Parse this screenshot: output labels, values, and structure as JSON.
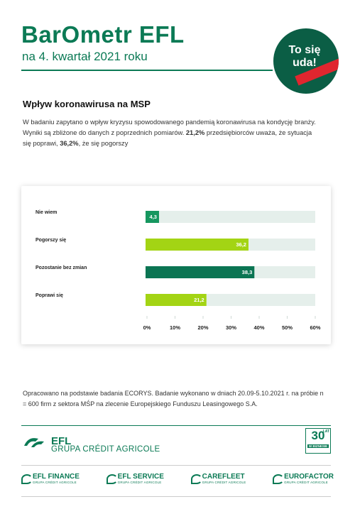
{
  "header": {
    "title": "BarOmetr EFL",
    "subtitle": "na 4. kwartał 2021 roku",
    "badge": "To się uda!"
  },
  "section_title": "Wpływ koronawirusa na MSP",
  "intro": [
    "W badaniu zapytano o wpływ kryzysu spowodowanego pandemią koronawirusa na kondycję branży. Wyniki są zbliżone do danych z poprzednich pomiarów. ",
    "21,2%",
    " przedsiębiorców uważa, że sytuacja się poprawi, ",
    "36,2%",
    ", że się pogorszy"
  ],
  "chart_data": {
    "type": "barh",
    "categories": [
      "Nie wiem",
      "Pogorszy się",
      "Pozostanie bez zmian",
      "Poprawi się"
    ],
    "values": [
      4.3,
      36.2,
      38.3,
      21.2
    ],
    "value_labels": [
      "4,3",
      "36,2",
      "38,3",
      "21,2"
    ],
    "colors": [
      "#16975f",
      "#a3d414",
      "#0b7553",
      "#a3d414"
    ],
    "track_color": "#e5efeb",
    "xlim": [
      0,
      60
    ],
    "xticks": [
      {
        "value": 0,
        "label": "0%"
      },
      {
        "value": 10,
        "label": "10%"
      },
      {
        "value": 20,
        "label": "20%"
      },
      {
        "value": 30,
        "label": "30%"
      },
      {
        "value": 40,
        "label": "40%"
      },
      {
        "value": 50,
        "label": "50%"
      },
      {
        "value": 60,
        "label": "60%"
      }
    ]
  },
  "source": "Opracowano na podstawie badania ECORYS. Badanie wykonano w dniach 20.09-5.10.2021 r. na próbie n = 600 firm z sektora MŚP na zlecenie Europejskiego Funduszu Leasingowego S.A.",
  "footer": {
    "group_name": "EFL",
    "group_sub": "GRUPA CRÉDIT AGRICOLE",
    "anniversary": {
      "number": "30",
      "unit": "LAT",
      "text": "W BIZNESIE"
    },
    "logos": [
      {
        "name": "EFL FINANCE",
        "sub": "GRUPA CRÉDIT AGRICOLE"
      },
      {
        "name": "EFL SERVICE",
        "sub": "GRUPA CRÉDIT AGRICOLE"
      },
      {
        "name": "CAREFLEET",
        "sub": "GRUPA CRÉDIT AGRICOLE"
      },
      {
        "name": "EUROFACTOR",
        "sub": "GRUPA CRÉDIT AGRICOLE"
      }
    ]
  }
}
